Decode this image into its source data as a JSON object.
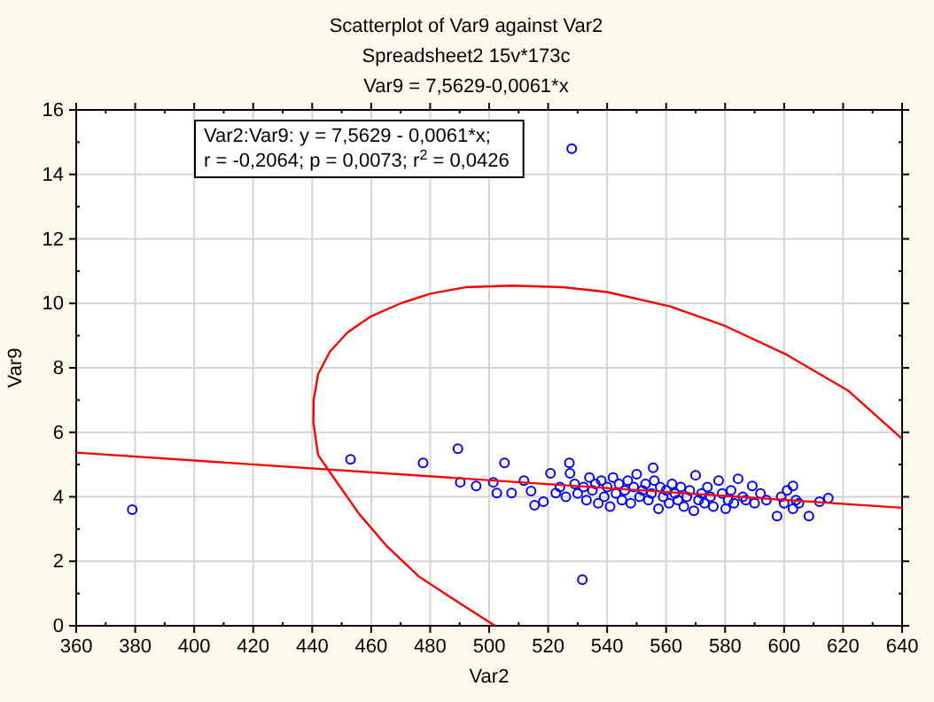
{
  "chart_data": {
    "type": "scatter",
    "title": "Scatterplot of Var9 against Var2",
    "subtitle": "Spreadsheet2 15v*173c",
    "annotations": [
      "Var9 = 7,5629-0,0061*x",
      "Var2:Var9:   y = 7,5629 - 0,0061*x;",
      "r = -0,2064; p = 0,0073; r$^{2}$ = 0,0426"
    ],
    "xlabel": "Var2",
    "ylabel": "Var9",
    "xlim": [
      360,
      640
    ],
    "xticks": [
      360,
      380,
      400,
      420,
      440,
      460,
      480,
      500,
      520,
      540,
      560,
      580,
      600,
      620,
      640
    ],
    "ylim": [
      0,
      16
    ],
    "yticks": [
      0,
      2,
      4,
      6,
      8,
      10,
      12,
      14,
      16
    ],
    "grid": true,
    "marker": "circle",
    "series": [
      {
        "color": "#0000ff",
        "x": [
          379,
          453,
          477.6,
          489.4,
          490.2,
          495.6,
          505.2,
          501.4,
          502.6,
          507.6,
          511.8,
          514.2,
          515.4,
          518.4,
          520.8,
          522.6,
          527.2,
          527.4,
          528,
          531.6,
          524,
          526,
          529,
          530,
          532,
          533,
          534,
          535,
          536,
          537,
          538,
          539,
          540,
          541,
          542,
          543,
          544,
          545,
          546,
          547,
          548,
          549,
          550,
          551,
          552,
          553,
          554,
          555,
          555.6,
          556,
          557.4,
          558,
          559,
          560,
          561,
          562,
          563,
          564,
          565,
          566,
          567,
          568,
          569.4,
          570,
          571,
          572,
          573,
          574,
          575,
          576,
          577.8,
          579,
          580.2,
          581,
          582,
          583,
          584.4,
          586,
          587,
          589.2,
          590,
          592,
          594,
          597.6,
          599,
          600,
          601,
          603,
          603,
          604,
          605,
          608.4,
          612,
          615
        ],
        "values": [
          3.6,
          5.16,
          5.05,
          5.49,
          4.45,
          4.34,
          5.05,
          4.45,
          4.12,
          4.12,
          4.5,
          4.18,
          3.74,
          3.85,
          4.73,
          4.12,
          5.05,
          4.73,
          14.8,
          1.43,
          4.3,
          4.0,
          4.4,
          4.1,
          4.3,
          3.9,
          4.6,
          4.2,
          4.4,
          3.8,
          4.5,
          4.0,
          4.3,
          3.7,
          4.6,
          4.1,
          4.4,
          3.9,
          4.2,
          4.5,
          3.8,
          4.3,
          4.7,
          4.0,
          4.2,
          4.4,
          3.9,
          4.1,
          4.9,
          4.5,
          3.63,
          4.3,
          4.0,
          4.2,
          3.8,
          4.4,
          4.1,
          3.9,
          4.3,
          3.7,
          4.0,
          4.2,
          3.57,
          4.67,
          3.9,
          4.1,
          3.8,
          4.3,
          4.0,
          3.7,
          4.5,
          4.1,
          3.63,
          3.9,
          4.2,
          3.8,
          4.56,
          4.0,
          3.9,
          4.34,
          3.8,
          4.1,
          3.9,
          3.4,
          4.0,
          3.8,
          4.2,
          4.34,
          3.63,
          3.9,
          3.8,
          3.4,
          3.85,
          3.96
        ]
      },
      {
        "type": "line",
        "marker": "none",
        "color": "#ff0000",
        "x": [
          360,
          640
        ],
        "values": [
          5.37,
          3.66
        ]
      },
      {
        "type": "line",
        "marker": "none",
        "color": "#ff0000",
        "x": [
          502,
          490,
          476,
          465,
          456,
          448,
          442,
          440.4,
          440.5,
          442,
          446,
          452,
          460,
          470,
          480,
          492,
          508,
          525,
          540,
          561.6,
          580,
          601,
          621.6,
          640
        ],
        "values": [
          0,
          0.7,
          1.54,
          2.5,
          3.46,
          4.5,
          5.3,
          6.3,
          7,
          7.8,
          8.5,
          9.1,
          9.6,
          10.0,
          10.3,
          10.5,
          10.55,
          10.5,
          10.35,
          9.9,
          9.3,
          8.4,
          7.3,
          5.8
        ]
      }
    ]
  }
}
